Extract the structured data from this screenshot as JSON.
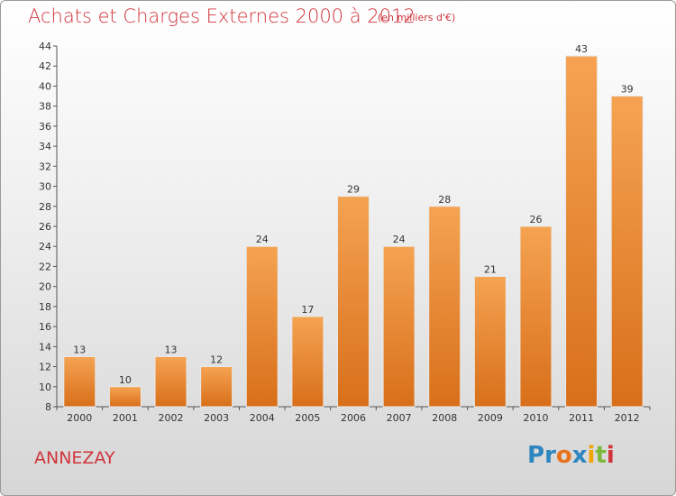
{
  "header": {
    "title": "Achats et Charges Externes 2000 à 2012",
    "subtitle": "(en milliers d'€)"
  },
  "footer": {
    "commune": "ANNEZAY",
    "logo_letters": [
      {
        "ch": "P",
        "color": "#2e86c1"
      },
      {
        "ch": "r",
        "color": "#2e86c1"
      },
      {
        "ch": "o",
        "color": "#e8731d"
      },
      {
        "ch": "x",
        "color": "#2e86c1"
      },
      {
        "ch": "i",
        "color": "#f0a500"
      },
      {
        "ch": "t",
        "color": "#7cb83a"
      },
      {
        "ch": "i",
        "color": "#d0343c"
      }
    ]
  },
  "chart_data": {
    "type": "bar",
    "categories": [
      "2000",
      "2001",
      "2002",
      "2003",
      "2004",
      "2005",
      "2006",
      "2007",
      "2008",
      "2009",
      "2010",
      "2011",
      "2012"
    ],
    "values": [
      13,
      10,
      13,
      12,
      24,
      17,
      29,
      24,
      28,
      21,
      26,
      43,
      39
    ],
    "ylim": [
      8,
      44
    ],
    "yticks": [
      8,
      10,
      12,
      14,
      16,
      18,
      20,
      22,
      24,
      26,
      28,
      30,
      32,
      34,
      36,
      38,
      40,
      42,
      44
    ],
    "grid": false,
    "bar_color_light": "#f5a352",
    "bar_color_dark": "#d86f1a"
  }
}
